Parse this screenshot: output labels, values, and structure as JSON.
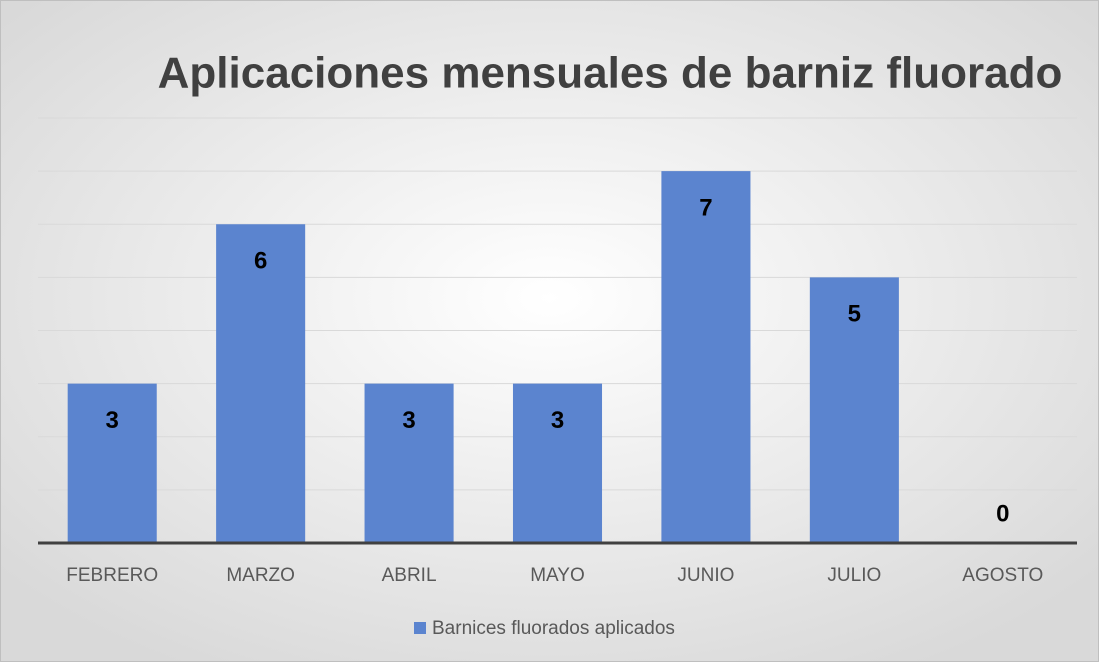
{
  "chart_data": {
    "type": "bar",
    "title": "Aplicaciones mensuales de barniz fluorado",
    "categories": [
      "FEBRERO",
      "MARZO",
      "ABRIL",
      "MAYO",
      "JUNIO",
      "JULIO",
      "AGOSTO"
    ],
    "series": [
      {
        "name": "Barnices fluorados aplicados",
        "color": "#5b84cf",
        "values": [
          3,
          6,
          3,
          3,
          7,
          5,
          0
        ]
      }
    ],
    "ylim": [
      0,
      8
    ],
    "yticks": [
      0,
      1,
      2,
      3,
      4,
      5,
      6,
      7,
      8
    ],
    "grid": true,
    "legend": "bottom"
  }
}
